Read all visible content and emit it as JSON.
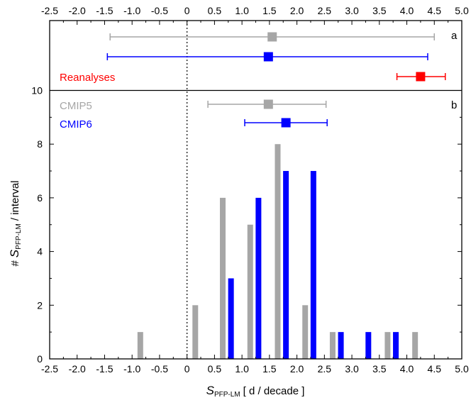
{
  "chart_data": [
    {
      "panel": "a",
      "type": "errorbar",
      "label": "a",
      "series": [
        {
          "name": "",
          "color": "#a6a6a6",
          "center": 1.55,
          "low": -1.4,
          "high": 4.5
        },
        {
          "name": "",
          "color": "#0000ff",
          "center": 1.48,
          "low": -1.45,
          "high": 4.38
        },
        {
          "name": "Reanalyses",
          "color": "#ff0000",
          "center": 4.25,
          "low": 3.82,
          "high": 4.7
        }
      ]
    },
    {
      "panel": "b",
      "type": "bar",
      "label": "b",
      "xlabel_symbol": "S",
      "xlabel_subscript": "PFP-LM",
      "xlabel_unit": "[ d / decade ]",
      "ylabel_prefix": "#",
      "ylabel_symbol": "S",
      "ylabel_subscript": "PFP-LM",
      "ylabel_suffix": "/ interval",
      "xlim": [
        -2.5,
        5.0
      ],
      "ylim": [
        0,
        10
      ],
      "xticks": [
        "-2.5",
        "-2.0",
        "-1.5",
        "-1.0",
        "-0.5",
        "0",
        "0.5",
        "1.0",
        "1.5",
        "2.0",
        "2.5",
        "3.0",
        "3.5",
        "4.0",
        "4.5",
        "5.0"
      ],
      "yticks": [
        "0",
        "2",
        "4",
        "6",
        "8",
        "10"
      ],
      "series": [
        {
          "name": "CMIP5",
          "color": "#a6a6a6",
          "x": [
            -0.85,
            0.15,
            0.65,
            1.15,
            1.65,
            2.15,
            2.65,
            3.65,
            4.15
          ],
          "values": [
            1,
            2,
            6,
            5,
            8,
            2,
            1,
            1,
            1
          ],
          "errorbar": {
            "center": 1.48,
            "low": 0.38,
            "high": 2.53
          }
        },
        {
          "name": "CMIP6",
          "color": "#0000ff",
          "x": [
            0.8,
            1.3,
            1.8,
            2.3,
            2.8,
            3.3,
            3.8
          ],
          "values": [
            3,
            6,
            7,
            7,
            1,
            1,
            1
          ],
          "errorbar": {
            "center": 1.8,
            "low": 1.05,
            "high": 2.55
          }
        }
      ]
    }
  ]
}
